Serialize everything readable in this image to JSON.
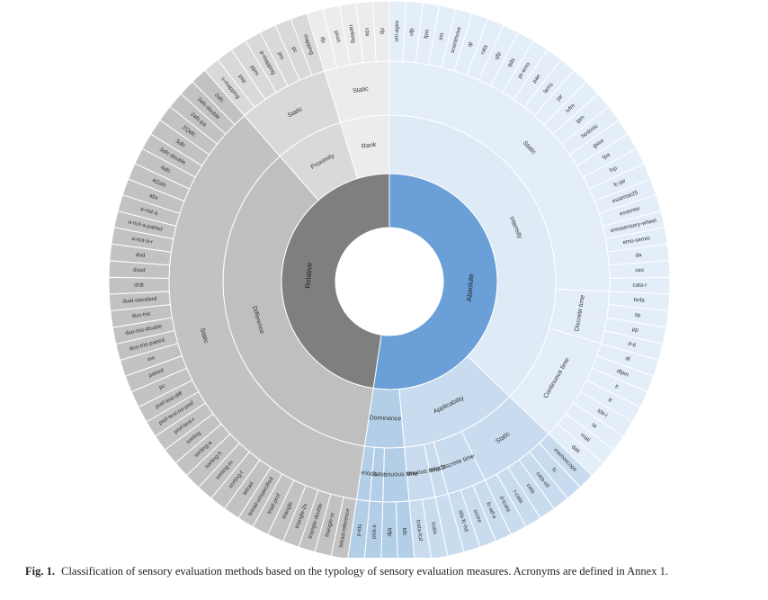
{
  "caption": {
    "label": "Fig. 1.",
    "text": "Classification of sensory evaluation methods based on the typology of sensory evaluation measures. Acronyms are defined in Annex 1."
  },
  "colors": {
    "absolute_core": "#6a9fd8",
    "absolute_mid": "#c9dcef",
    "absolute_outer": "#e3eef8",
    "absolute_dark_mid": "#b3cfe8",
    "absolute_dark_outer": "#c6dbee",
    "relative_core": "#7f7f7f",
    "relative_mid": "#bfbfbf",
    "relative_outer": "#d9d9d9",
    "relative_light_mid": "#dcdcdc",
    "relative_light_outer": "#ececec",
    "relative_leaf": "#c8c8c8",
    "rank_leaf": "#e9e9e9"
  },
  "diagram": {
    "type": "sunburst",
    "root": [
      {
        "label": "Absolute",
        "color": "#6a9fd8",
        "children": [
          {
            "label": "Intensity",
            "color": "#deeaf6",
            "children": [
              {
                "label": "Static",
                "color": "#e3eef8",
                "children": [
                  "uni-ages",
                  "ufp",
                  "fpm",
                  "sm",
                  "scentmove",
                  "qt",
                  "rata",
                  "qfp",
                  "qda",
                  "pr-emo",
                  "pae",
                  "lams",
                  "jar",
                  "ivfm",
                  "ipm",
                  "hedonic",
                  "gsos",
                  "fpa",
                  "fcp",
                  "fc-jar",
                  "essense25",
                  "essense",
                  "emosensory-wheel",
                  "emo-semio",
                  "da",
                  "ces",
                  "cata-r"
                ]
              },
              {
                "label": "Discrete time",
                "color": "#e3eef8",
                "children": [
                  "tsrfa",
                  "sp",
                  "pp",
                  "d-ti"
                ]
              },
              {
                "label": "Continuous time",
                "color": "#e3eef8",
                "children": [
                  "dl",
                  "dfpm",
                  "ti",
                  "tt",
                  "tds-i",
                  "ta",
                  "mati",
                  "dati"
                ]
              }
            ]
          },
          {
            "label": "Applicability",
            "color": "#c9dcef",
            "children": [
              {
                "label": "Static",
                "color": "#c9dcef",
                "children": [
                  "memoscope",
                  "fc",
                  "cata-cd",
                  "cata",
                  "r-cata",
                  "d-tcata"
                ]
              },
              {
                "label": "Discrete time",
                "color": "#c9dcef",
                "children": [
                  "fc-ad-a",
                  "score",
                  "tda-fc-hd"
                ]
              },
              {
                "label": "Periods",
                "color": "#c9dcef",
                "children": []
              },
              {
                "label": "Continuous time",
                "color": "#c9dcef",
                "children": [
                  "tcata",
                  "tcata-fcd"
                ]
              }
            ]
          },
          {
            "label": "Dominance",
            "color": "#b3cfe8",
            "children": [
              {
                "label": "Continuous time",
                "color": "#b3cfe8",
                "children": [
                  "tds",
                  "tdlp"
                ]
              },
              {
                "label": "Static",
                "color": "#b3cfe8",
                "children": [
                  "pick-k"
                ]
              },
              {
                "label": "Periods",
                "color": "#b3cfe8",
                "children": [
                  "p-tds"
                ]
              }
            ]
          }
        ]
      },
      {
        "label": "Relative",
        "color": "#7f7f7f",
        "children": [
          {
            "label": "Difference",
            "color": "#bfbfbf",
            "children": [
              {
                "label": "Static",
                "color": "#c2c2c2",
                "children": [
                  "tetrad-reference",
                  "triangle-m",
                  "triangle-double",
                  "triangle-2x",
                  "triangle",
                  "triad-prof",
                  "tetrad-unspecified",
                  "tetrad",
                  "sorting-t",
                  "sorting-m",
                  "sorting-h",
                  "sorting-a",
                  "sorting",
                  "pref-test-r",
                  "pref-test-no-pref",
                  "pref-test-diff",
                  "pc",
                  "paired",
                  "mn",
                  "duo-trio-paired",
                  "duo-trio-double",
                  "duo-trio",
                  "dual-standard",
                  "drdt",
                  "dosd",
                  "dod",
                  "a-not-a-r",
                  "a-not-a-paired",
                  "a-not-a",
                  "abx",
                  "4t2afc",
                  "4afc",
                  "3afc-double",
                  "3afc",
                  "2Qafc",
                  "2afc-pa",
                  "2afc-double",
                  "2afc"
                ]
              }
            ]
          },
          {
            "label": "Proximity",
            "color": "#d9d9d9",
            "children": [
              {
                "label": "Static",
                "color": "#d9d9d9",
                "children": [
                  "s-mapping",
                  "psp",
                  "ppm",
                  "p-mapping",
                  "pm",
                  "pc",
                  "mapping"
                ]
              }
            ]
          },
          {
            "label": "Rank",
            "color": "#ececec",
            "children": [
              {
                "label": "Static",
                "color": "#ececec",
                "children": [
                  "tfp",
                  "pivot",
                  "ranking",
                  "rda",
                  "rfp"
                ]
              }
            ]
          }
        ]
      }
    ]
  }
}
